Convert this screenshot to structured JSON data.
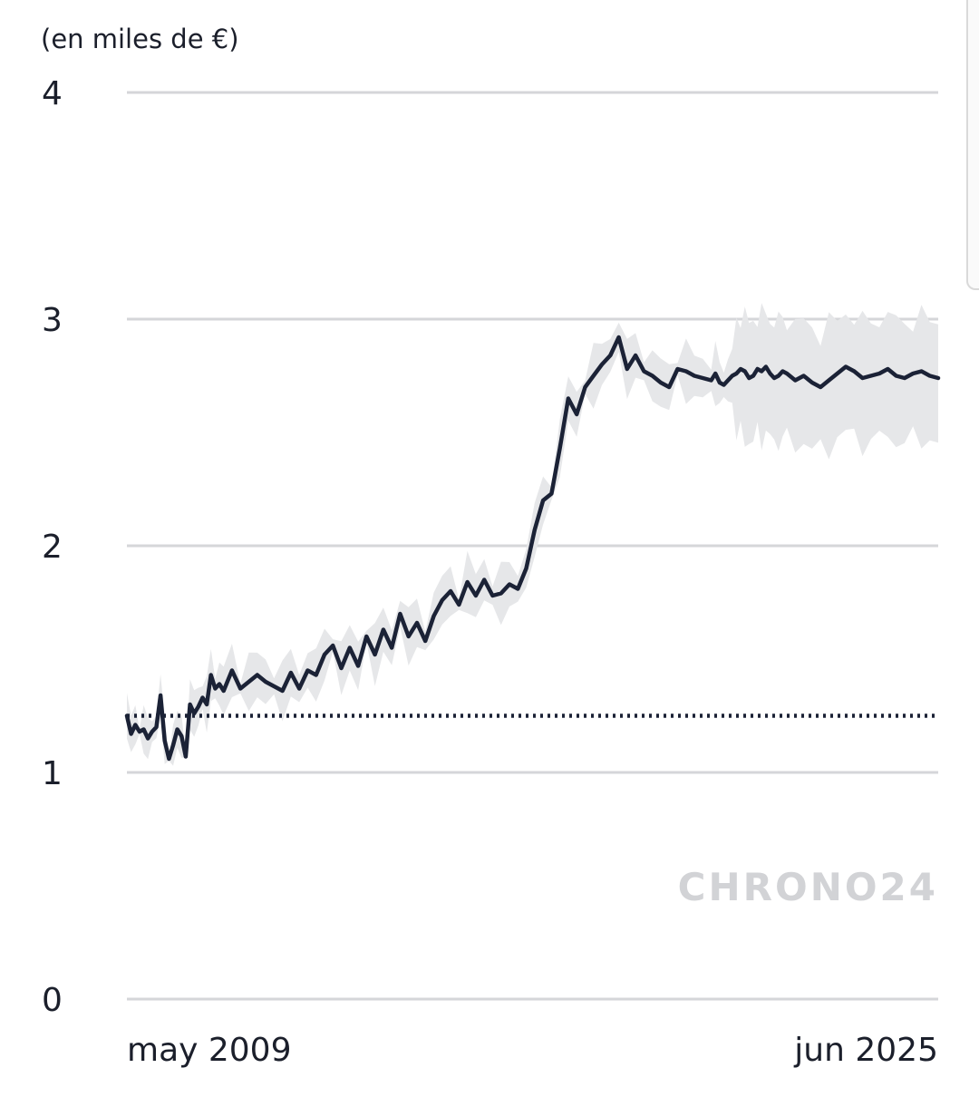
{
  "chart_data": {
    "type": "line",
    "ylabel": "(en miles de €)",
    "ylim": [
      0,
      4
    ],
    "yticks": [
      0,
      1,
      2,
      3,
      4
    ],
    "xlim": [
      "2009-05",
      "2025-06"
    ],
    "xtick_labels": [
      "may 2009",
      "jun 2025"
    ],
    "grid": true,
    "watermark": "CHRONO24",
    "reference_line": {
      "value": 1.25,
      "style": "dotted"
    },
    "series": [
      {
        "x": [
          "2009-05",
          "2009-06",
          "2009-07",
          "2009-08",
          "2009-09",
          "2009-10",
          "2009-11",
          "2009-12",
          "2010-01",
          "2010-02",
          "2010-03",
          "2010-04",
          "2010-05",
          "2010-06",
          "2010-07",
          "2010-08",
          "2010-09",
          "2010-10",
          "2010-11",
          "2010-12",
          "2011-01",
          "2011-02",
          "2011-03",
          "2011-04",
          "2011-06",
          "2011-08",
          "2011-10",
          "2011-12",
          "2012-02",
          "2012-04",
          "2012-06",
          "2012-08",
          "2012-10",
          "2012-12",
          "2013-02",
          "2013-04",
          "2013-06",
          "2013-08",
          "2013-10",
          "2013-12",
          "2014-02",
          "2014-04",
          "2014-06",
          "2014-08",
          "2014-10",
          "2014-12",
          "2015-02",
          "2015-04",
          "2015-06",
          "2015-08",
          "2015-10",
          "2015-12",
          "2016-02",
          "2016-04",
          "2016-06",
          "2016-08",
          "2016-10",
          "2016-12",
          "2017-02",
          "2017-04",
          "2017-06",
          "2017-08",
          "2017-10",
          "2017-12",
          "2018-02",
          "2018-04",
          "2018-06",
          "2018-08",
          "2018-10",
          "2018-12",
          "2019-02",
          "2019-04",
          "2019-06",
          "2019-08",
          "2019-10",
          "2019-12",
          "2020-02",
          "2020-04",
          "2020-06",
          "2020-08",
          "2020-10",
          "2020-12",
          "2021-01",
          "2021-02",
          "2021-03",
          "2021-04",
          "2021-05",
          "2021-06",
          "2021-07",
          "2021-08",
          "2021-09",
          "2021-10",
          "2021-11",
          "2021-12",
          "2022-01",
          "2022-02",
          "2022-03",
          "2022-04",
          "2022-05",
          "2022-06",
          "2022-08",
          "2022-10",
          "2022-12",
          "2023-02",
          "2023-04",
          "2023-06",
          "2023-08",
          "2023-10",
          "2023-12",
          "2024-02",
          "2024-04",
          "2024-06",
          "2024-08",
          "2024-10",
          "2024-12",
          "2025-02",
          "2025-04",
          "2025-06"
        ],
        "values": [
          1.25,
          1.17,
          1.21,
          1.18,
          1.19,
          1.15,
          1.18,
          1.2,
          1.34,
          1.14,
          1.06,
          1.12,
          1.19,
          1.16,
          1.07,
          1.3,
          1.26,
          1.29,
          1.33,
          1.3,
          1.43,
          1.37,
          1.39,
          1.36,
          1.45,
          1.37,
          1.4,
          1.43,
          1.4,
          1.38,
          1.36,
          1.44,
          1.37,
          1.45,
          1.43,
          1.52,
          1.56,
          1.46,
          1.55,
          1.47,
          1.6,
          1.52,
          1.63,
          1.55,
          1.7,
          1.6,
          1.66,
          1.58,
          1.69,
          1.76,
          1.8,
          1.74,
          1.84,
          1.78,
          1.85,
          1.78,
          1.79,
          1.83,
          1.81,
          1.9,
          2.07,
          2.2,
          2.23,
          2.43,
          2.65,
          2.58,
          2.7,
          2.75,
          2.8,
          2.84,
          2.92,
          2.78,
          2.84,
          2.77,
          2.75,
          2.72,
          2.7,
          2.78,
          2.77,
          2.75,
          2.74,
          2.73,
          2.76,
          2.72,
          2.71,
          2.73,
          2.75,
          2.76,
          2.78,
          2.77,
          2.74,
          2.75,
          2.78,
          2.77,
          2.79,
          2.76,
          2.74,
          2.75,
          2.77,
          2.76,
          2.73,
          2.75,
          2.72,
          2.7,
          2.73,
          2.76,
          2.79,
          2.77,
          2.74,
          2.75,
          2.76,
          2.78,
          2.75,
          2.74,
          2.76,
          2.77,
          2.75,
          2.74
        ]
      }
    ]
  }
}
